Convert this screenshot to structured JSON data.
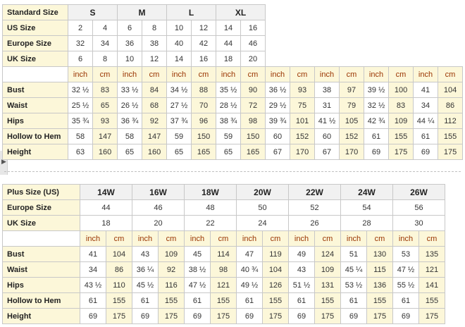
{
  "standard": {
    "header_label": "Standard Size",
    "sizes": [
      "S",
      "M",
      "L",
      "XL"
    ],
    "us": {
      "label": "US Size",
      "values": [
        "2",
        "4",
        "6",
        "8",
        "10",
        "12",
        "14",
        "16"
      ]
    },
    "europe": {
      "label": "Europe Size",
      "values": [
        "32",
        "34",
        "36",
        "38",
        "40",
        "42",
        "44",
        "46"
      ]
    },
    "uk": {
      "label": "UK Size",
      "values": [
        "6",
        "8",
        "10",
        "12",
        "14",
        "16",
        "18",
        "20"
      ]
    },
    "units": [
      "inch",
      "cm",
      "inch",
      "cm",
      "inch",
      "cm",
      "inch",
      "cm",
      "inch",
      "cm",
      "inch",
      "cm",
      "inch",
      "cm",
      "inch",
      "cm"
    ],
    "rows": [
      {
        "label": "Bust",
        "values": [
          "32 ½",
          "83",
          "33 ½",
          "84",
          "34 ½",
          "88",
          "35 ½",
          "90",
          "36 ½",
          "93",
          "38",
          "97",
          "39 ½",
          "100",
          "41",
          "104"
        ]
      },
      {
        "label": "Waist",
        "values": [
          "25 ½",
          "65",
          "26 ½",
          "68",
          "27 ½",
          "70",
          "28 ½",
          "72",
          "29 ½",
          "75",
          "31",
          "79",
          "32 ½",
          "83",
          "34",
          "86"
        ]
      },
      {
        "label": "Hips",
        "values": [
          "35 ¾",
          "93",
          "36 ¾",
          "92",
          "37 ¾",
          "96",
          "38 ¾",
          "98",
          "39 ¾",
          "101",
          "41 ½",
          "105",
          "42 ¾",
          "109",
          "44 ¼",
          "112"
        ]
      },
      {
        "label": "Hollow to Hem",
        "values": [
          "58",
          "147",
          "58",
          "147",
          "59",
          "150",
          "59",
          "150",
          "60",
          "152",
          "60",
          "152",
          "61",
          "155",
          "61",
          "155"
        ]
      },
      {
        "label": "Height",
        "values": [
          "63",
          "160",
          "65",
          "160",
          "65",
          "165",
          "65",
          "165",
          "67",
          "170",
          "67",
          "170",
          "69",
          "175",
          "69",
          "175"
        ]
      }
    ]
  },
  "plus": {
    "header_label": "Plus Size (US)",
    "sizes": [
      "14W",
      "16W",
      "18W",
      "20W",
      "22W",
      "24W",
      "26W"
    ],
    "europe": {
      "label": "Europe Size",
      "values": [
        "44",
        "46",
        "48",
        "50",
        "52",
        "54",
        "56"
      ]
    },
    "uk": {
      "label": "UK Size",
      "values": [
        "18",
        "20",
        "22",
        "24",
        "26",
        "28",
        "30"
      ]
    },
    "units": [
      "inch",
      "cm",
      "inch",
      "cm",
      "inch",
      "cm",
      "inch",
      "cm",
      "inch",
      "cm",
      "inch",
      "cm",
      "inch",
      "cm"
    ],
    "rows": [
      {
        "label": "Bust",
        "values": [
          "41",
          "104",
          "43",
          "109",
          "45",
          "114",
          "47",
          "119",
          "49",
          "124",
          "51",
          "130",
          "53",
          "135"
        ]
      },
      {
        "label": "Waist",
        "values": [
          "34",
          "86",
          "36 ¼",
          "92",
          "38 ½",
          "98",
          "40 ¾",
          "104",
          "43",
          "109",
          "45 ¼",
          "115",
          "47 ½",
          "121"
        ]
      },
      {
        "label": "Hips",
        "values": [
          "43 ½",
          "110",
          "45 ½",
          "116",
          "47 ½",
          "121",
          "49 ½",
          "126",
          "51 ½",
          "131",
          "53 ½",
          "136",
          "55 ½",
          "141"
        ]
      },
      {
        "label": "Hollow to Hem",
        "values": [
          "61",
          "155",
          "61",
          "155",
          "61",
          "155",
          "61",
          "155",
          "61",
          "155",
          "61",
          "155",
          "61",
          "155"
        ]
      },
      {
        "label": "Height",
        "values": [
          "69",
          "175",
          "69",
          "175",
          "69",
          "175",
          "69",
          "175",
          "69",
          "175",
          "69",
          "175",
          "69",
          "175"
        ]
      }
    ]
  },
  "colors": {
    "label_bg": "#fcf7d9",
    "header_bg": "#f1f1f1",
    "unit_text": "#993300",
    "border": "#c8c8c8"
  },
  "icons": {
    "side_handle": "arrow-right-icon"
  }
}
